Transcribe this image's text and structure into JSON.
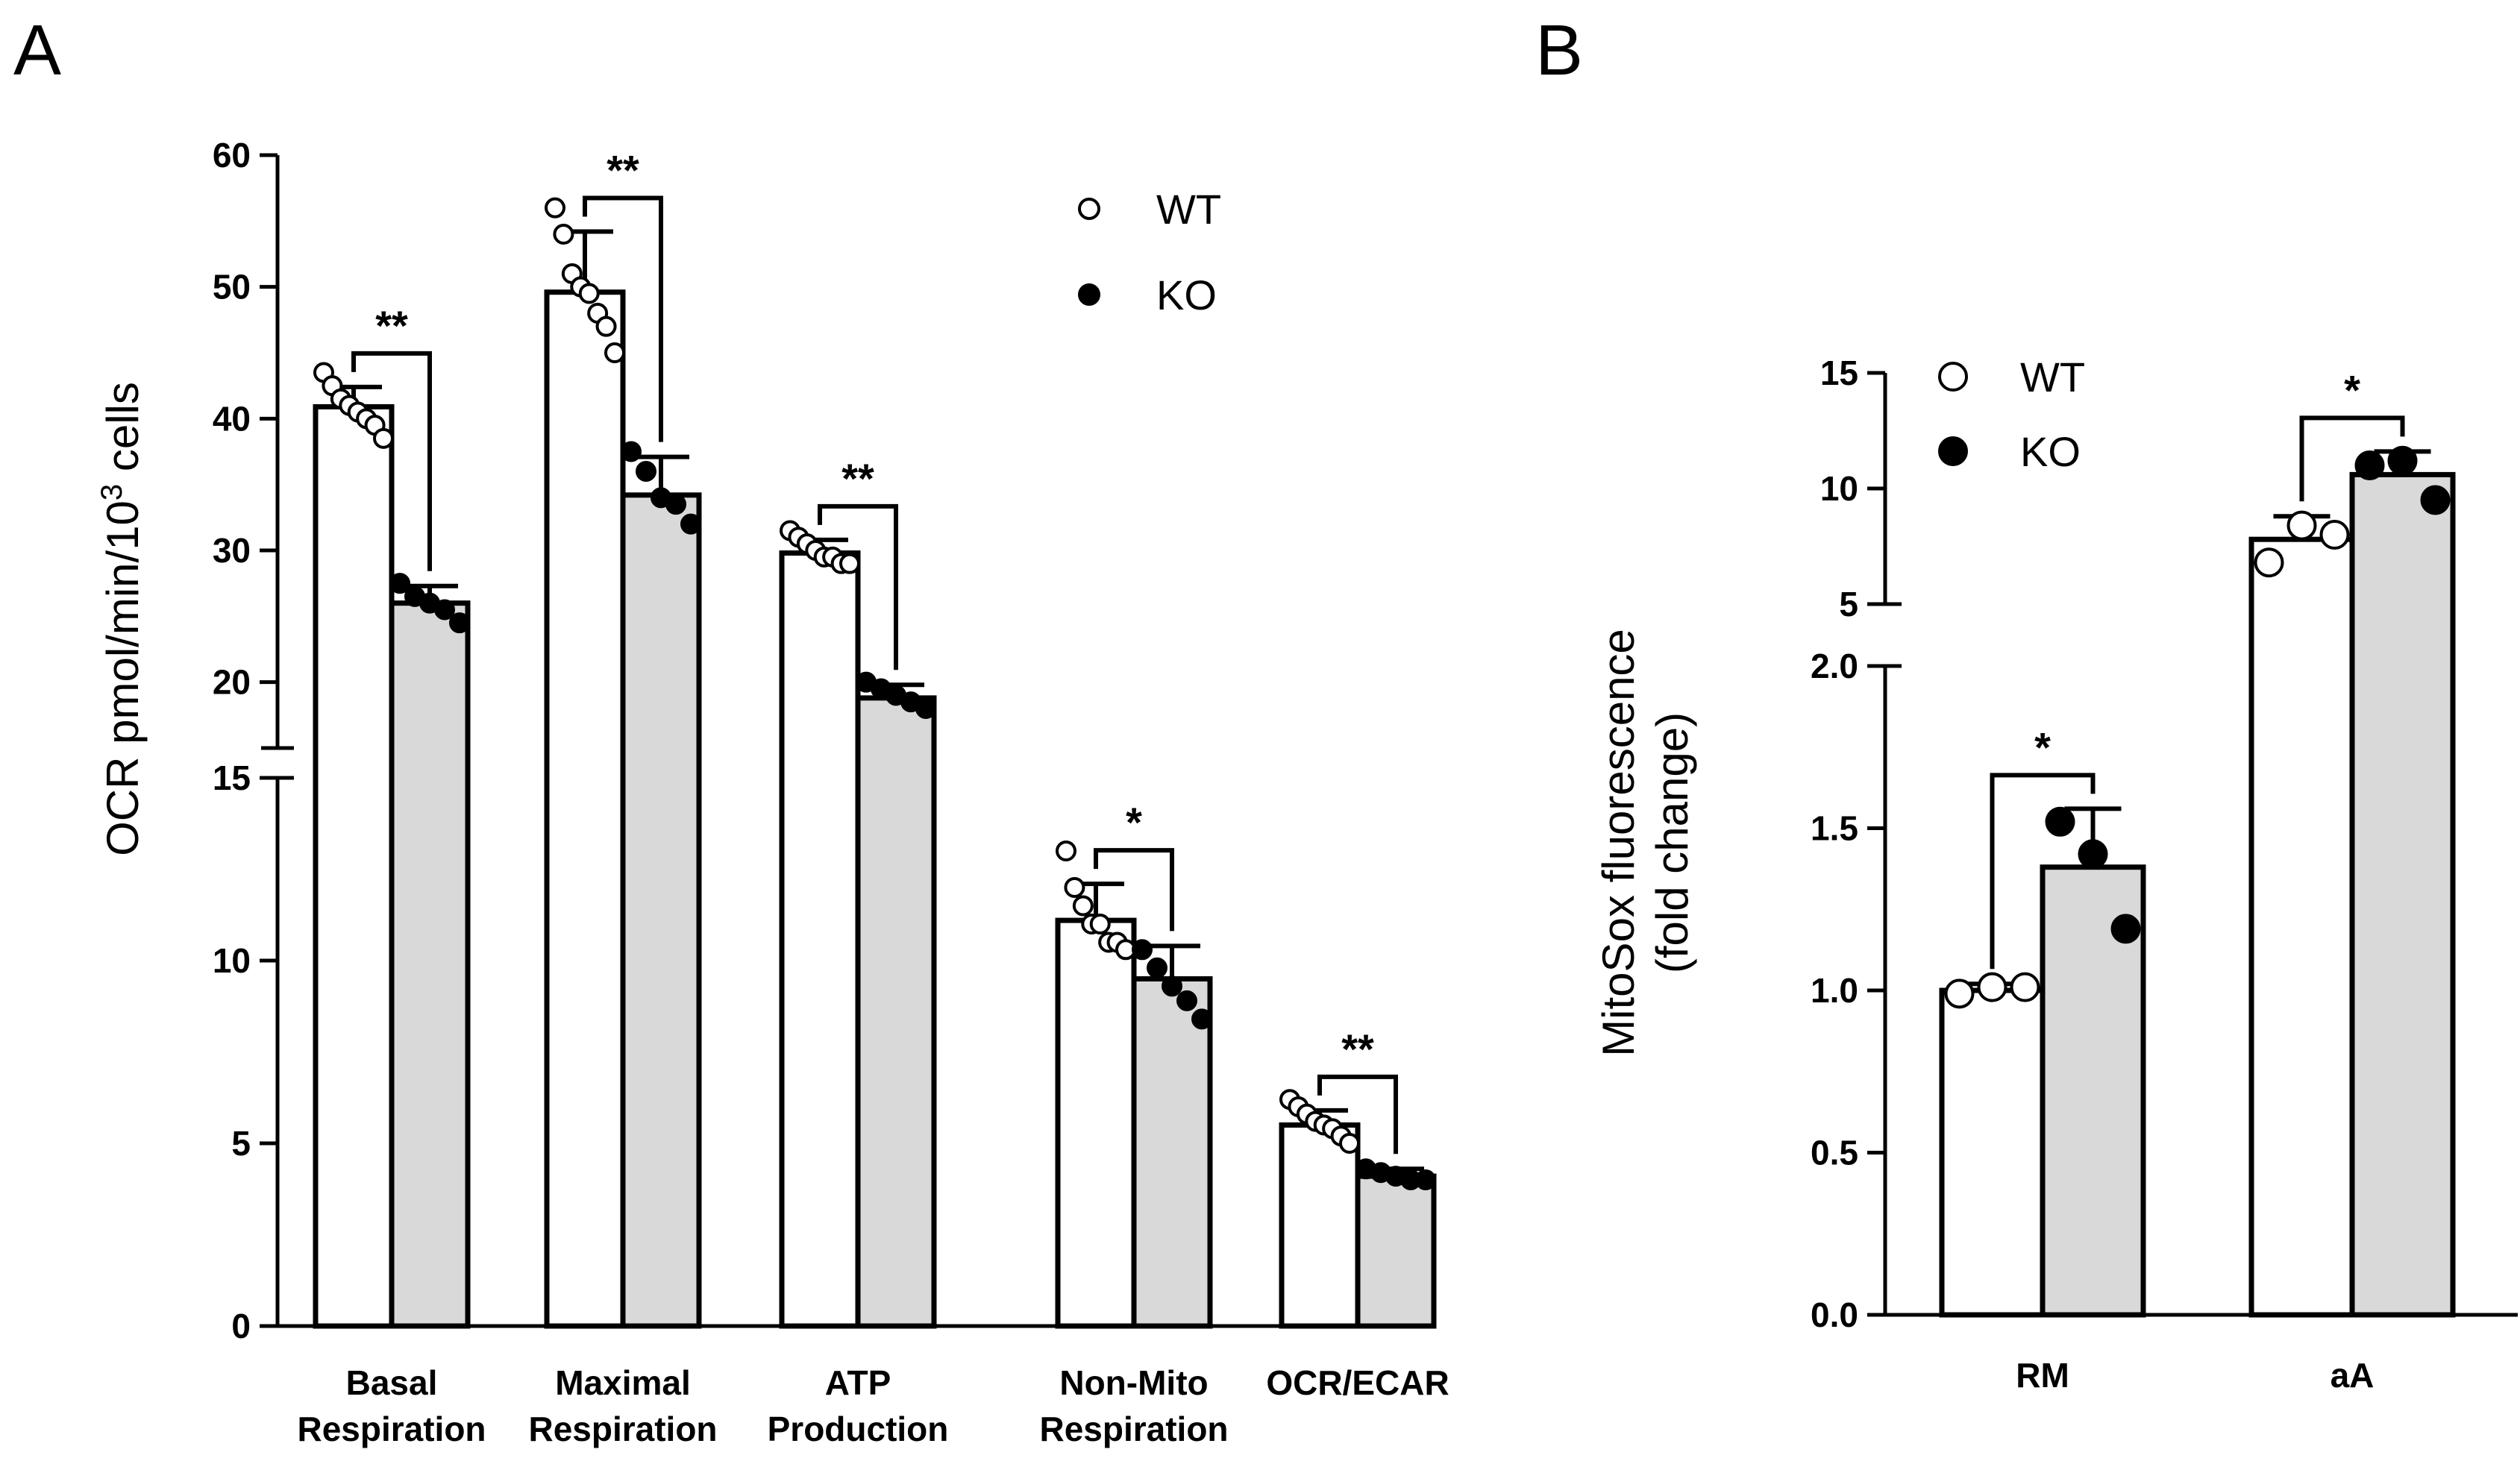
{
  "colors": {
    "wt_bar": "#ffffff",
    "ko_bar": "#d9d9d9",
    "ink": "#000000"
  },
  "chart_data": [
    {
      "type": "bar",
      "panel_label": "A",
      "ylabel": "OCR pmol/min/10",
      "ylabel_sup": "3",
      "ylabel_tail": " cells",
      "axis_break": {
        "lower": [
          0,
          15
        ],
        "upper": [
          15,
          60
        ]
      },
      "lower_ticks": [
        0,
        5,
        10,
        15
      ],
      "upper_ticks": [
        20,
        30,
        40,
        50,
        60
      ],
      "categories": [
        [
          "Basal",
          "Respiration"
        ],
        [
          "Maximal",
          "Respiration"
        ],
        [
          "ATP",
          "Production"
        ],
        [
          "Non-Mito",
          "Respiration"
        ],
        [
          "OCR/ECAR"
        ]
      ],
      "legend": {
        "position": "top-right",
        "entries": [
          "WT",
          "KO"
        ]
      },
      "series": [
        {
          "name": "WT",
          "values": [
            40.9,
            49.6,
            29.8,
            11.1,
            5.5
          ],
          "sd": [
            1.5,
            4.6,
            1.0,
            1.0,
            0.4
          ],
          "points": [
            [
              43.5,
              42.5,
              41.5,
              41,
              40.5,
              40,
              39.5,
              38.5
            ],
            [
              56,
              54,
              51,
              50,
              49.5,
              48,
              47,
              45
            ],
            [
              31.5,
              31,
              30.5,
              30,
              29.5,
              29.5,
              29,
              29
            ],
            [
              13,
              12,
              11.5,
              11,
              11,
              10.5,
              10.5,
              10.3
            ],
            [
              6.2,
              6,
              5.8,
              5.6,
              5.5,
              5.4,
              5.2,
              5
            ]
          ]
        },
        {
          "name": "KO",
          "values": [
            26.0,
            34.2,
            18.8,
            9.5,
            4.1
          ],
          "sd": [
            1.3,
            2.9,
            1.0,
            0.9,
            0.2
          ],
          "points": [
            [
              27.5,
              26.5,
              26,
              25.5,
              24.5
            ],
            [
              37.5,
              36,
              34,
              33.5,
              32
            ],
            [
              20,
              19.5,
              19,
              18.5,
              18
            ],
            [
              10.3,
              9.8,
              9.3,
              8.9,
              8.4
            ],
            [
              4.3,
              4.2,
              4.1,
              4.0,
              4.0
            ]
          ]
        }
      ],
      "significance": [
        "**",
        "**",
        "**",
        "*",
        "**"
      ]
    },
    {
      "type": "bar",
      "panel_label": "B",
      "ylabel_line1": "MitoSox fluorescence",
      "ylabel_line2": "(fold change)",
      "axis_break": {
        "lower": [
          0,
          2.0
        ],
        "upper": [
          5,
          15
        ]
      },
      "lower_ticks": [
        "0.0",
        "0.5",
        "1.0",
        "1.5",
        "2.0"
      ],
      "upper_ticks": [
        "5",
        "10",
        "15"
      ],
      "categories": [
        "RM",
        "aA"
      ],
      "legend": {
        "position": "top-left",
        "entries": [
          "WT",
          "KO"
        ]
      },
      "series": [
        {
          "name": "WT",
          "values": [
            1.0,
            7.8
          ],
          "sd": [
            0.02,
            1.0
          ],
          "points": [
            [
              0.99,
              1.01,
              1.01
            ],
            [
              6.8,
              8.4,
              8.0
            ]
          ]
        },
        {
          "name": "KO",
          "values": [
            1.38,
            10.6
          ],
          "sd": [
            0.18,
            1.0
          ],
          "points": [
            [
              1.52,
              1.42,
              1.19
            ],
            [
              11.0,
              11.2,
              9.5
            ]
          ]
        }
      ],
      "significance": [
        "*",
        "*"
      ]
    }
  ]
}
